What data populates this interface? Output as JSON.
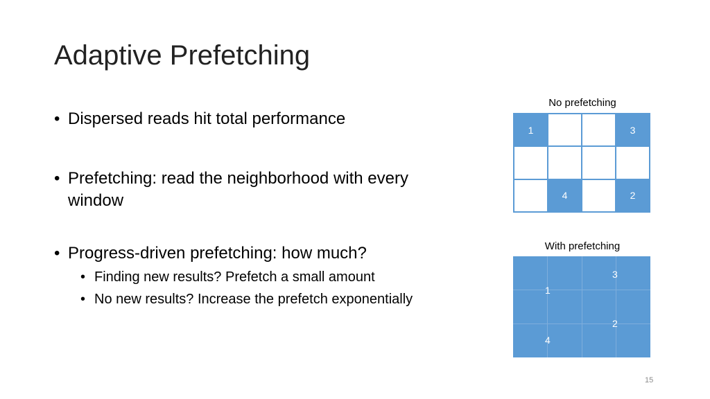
{
  "slide": {
    "title": "Adaptive Prefetching",
    "page_number": "15"
  },
  "bullets": [
    {
      "text": "Dispersed reads hit total performance"
    },
    {
      "text": "Prefetching: read the neighborhood with every window"
    },
    {
      "text": "Progress-driven prefetching: how much?",
      "sub": [
        "Finding new results? Prefetch a small amount",
        "No new results? Increase the prefetch exponentially"
      ]
    }
  ],
  "grid_no_prefetch": {
    "label": "No prefetching",
    "cells": [
      "1",
      "",
      "",
      "3",
      "",
      "",
      "",
      "",
      "",
      "4",
      "",
      "2"
    ],
    "filled": [
      true,
      false,
      false,
      true,
      false,
      false,
      false,
      false,
      false,
      true,
      false,
      true
    ]
  },
  "grid_with_prefetch": {
    "label": "With prefetching",
    "numbers": [
      "1",
      "3",
      "2",
      "4"
    ]
  },
  "colors": {
    "accent": "#5b9bd5"
  }
}
